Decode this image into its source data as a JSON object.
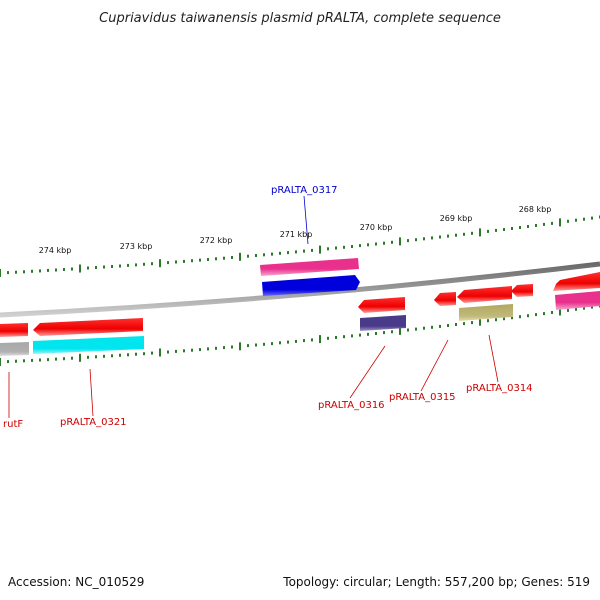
{
  "title": "Cupriavidus taiwanensis plasmid pRALTA, complete sequence",
  "footer": {
    "accession": "Accession: NC_010529",
    "summary": "Topology: circular; Length: 557,200 bp; Genes: 519"
  },
  "ticks": [
    "274 kbp",
    "273 kbp",
    "272 kbp",
    "271 kbp",
    "270 kbp",
    "269 kbp",
    "268 kbp"
  ],
  "gene_labels": [
    {
      "id": "pRALTA_0317",
      "text": "pRALTA_0317",
      "color": "#0000cc"
    },
    {
      "id": "rutF",
      "text": "rutF",
      "color": "#cc0000"
    },
    {
      "id": "pRALTA_0321",
      "text": "pRALTA_0321",
      "color": "#cc0000"
    },
    {
      "id": "pRALTA_0316",
      "text": "pRALTA_0316",
      "color": "#cc0000"
    },
    {
      "id": "pRALTA_0315",
      "text": "pRALTA_0315",
      "color": "#cc0000"
    },
    {
      "id": "pRALTA_0314",
      "text": "pRALTA_0314",
      "color": "#cc0000"
    }
  ],
  "colors": {
    "backbone": "#888888",
    "tick": "#2a7a2a",
    "gene_red": "#ee0000",
    "cds_pink": "#e8308c",
    "cds_blue": "#0000dd",
    "cds_cyan": "#00e5ee",
    "cds_gray": "#aaaaaa",
    "cds_purple": "#4a3a8a",
    "cds_olive": "#b8b070"
  }
}
